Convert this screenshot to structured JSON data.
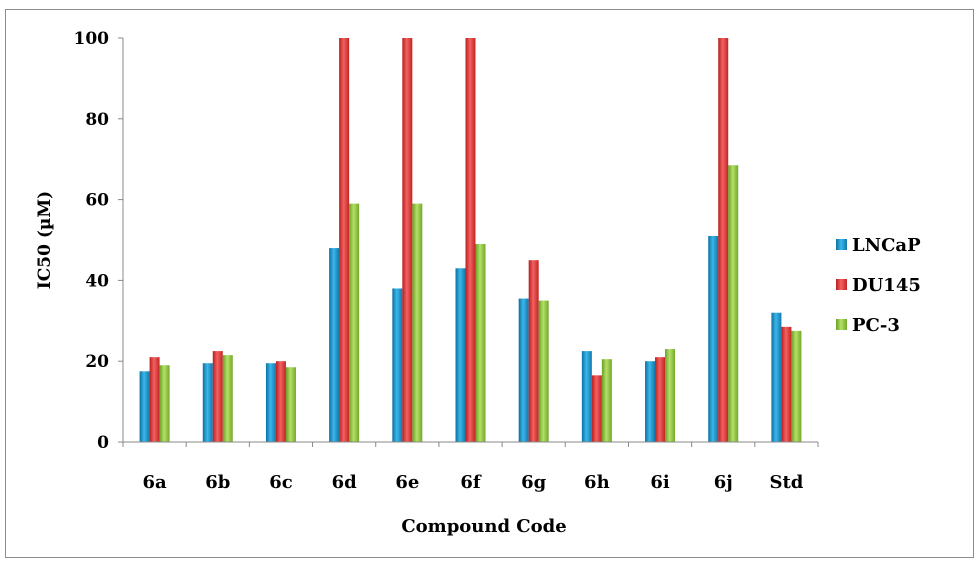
{
  "chart_data": {
    "type": "bar",
    "title": "",
    "xlabel": "Compound Code",
    "ylabel": "IC50 (µM)",
    "ylim": [
      0,
      100
    ],
    "yticks": [
      "0",
      "20",
      "40",
      "60",
      "80",
      "100"
    ],
    "grid": false,
    "legend_position": "right",
    "categories": [
      "6a",
      "6b",
      "6c",
      "6d",
      "6e",
      "6f",
      "6g",
      "6h",
      "6i",
      "6j",
      "Std"
    ],
    "series": [
      {
        "name": "LNCaP",
        "color": "#1f9ad0",
        "values": [
          17.5,
          19.5,
          19.5,
          48.0,
          38.0,
          43.0,
          35.5,
          22.5,
          20.0,
          51.0,
          32.0
        ]
      },
      {
        "name": "DU145",
        "color": "#e03535",
        "values": [
          21.0,
          22.5,
          20.0,
          100,
          100,
          100,
          45.0,
          16.5,
          21.0,
          100,
          28.5
        ]
      },
      {
        "name": "PC-3",
        "color": "#8cc63f",
        "values": [
          19.0,
          21.5,
          18.5,
          59.0,
          59.0,
          49.0,
          35.0,
          20.5,
          23.0,
          68.5,
          27.5
        ]
      }
    ]
  }
}
